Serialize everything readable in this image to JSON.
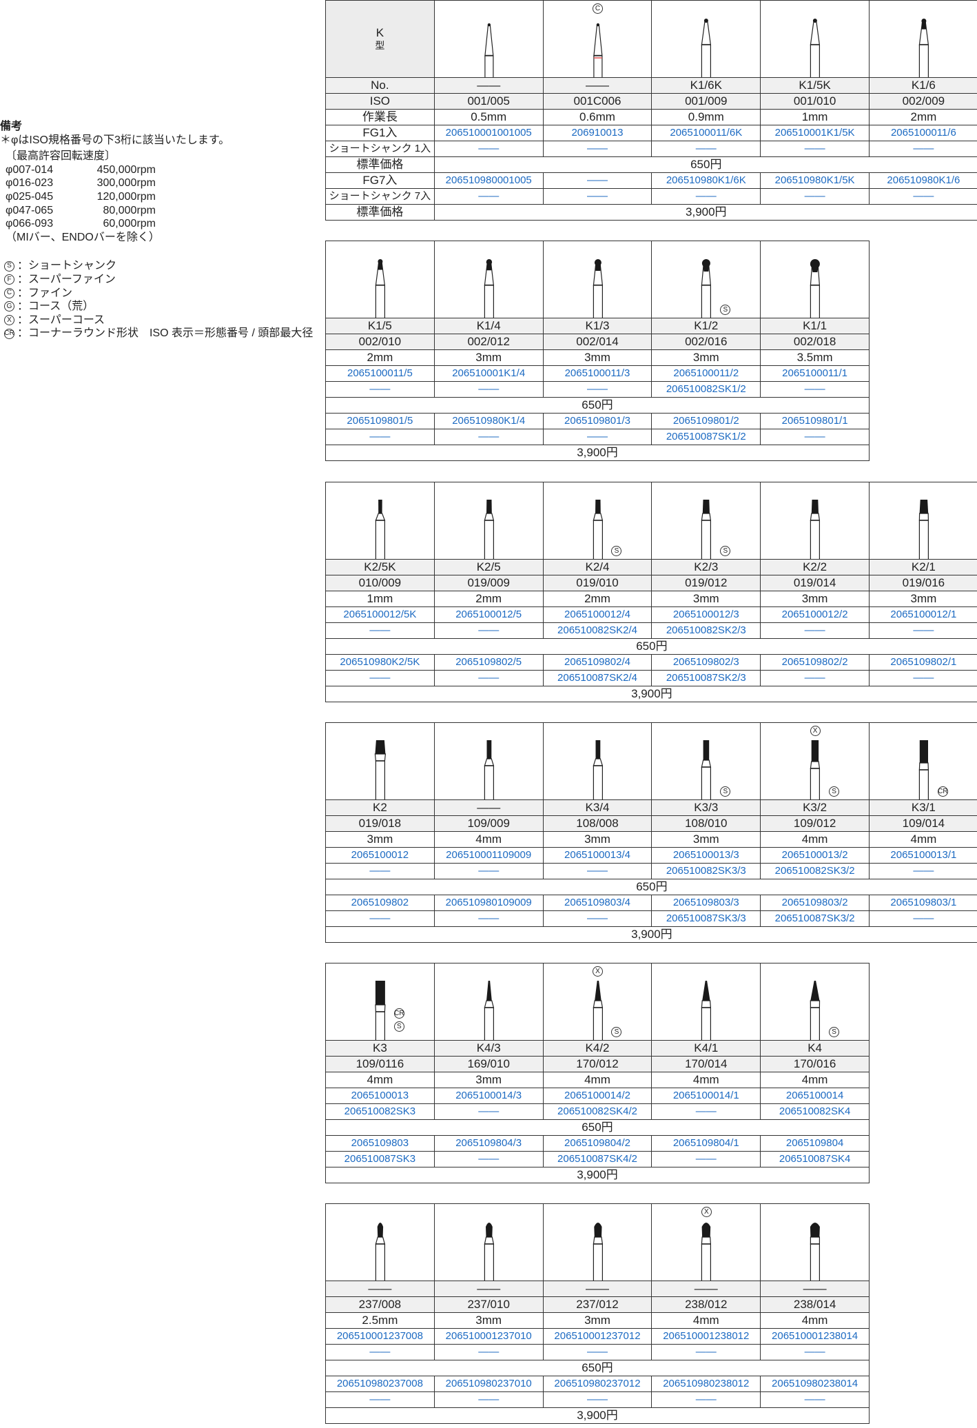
{
  "notes": {
    "heading": "備考",
    "asterisk": "＊φはISO規格番号の下3桁に該当いたします。",
    "speed_title": "〔最高許容回転速度〕",
    "speeds": [
      {
        "range": "φ007-014",
        "rpm": "450,000rpm"
      },
      {
        "range": "φ016-023",
        "rpm": "300,000rpm"
      },
      {
        "range": "φ025-045",
        "rpm": "120,000rpm"
      },
      {
        "range": "φ047-065",
        "rpm": "80,000rpm"
      },
      {
        "range": "φ066-093",
        "rpm": "60,000rpm"
      }
    ],
    "exclusion": "（MIバー、ENDOバーを除く）",
    "symbols": [
      {
        "mark": "S",
        "text": "：ショートシャンク"
      },
      {
        "mark": "F",
        "text": "：スーパーファイン"
      },
      {
        "mark": "C",
        "text": "：ファイン"
      },
      {
        "mark": "G",
        "text": "：コース（荒）"
      },
      {
        "mark": "X",
        "text": "：スーパーコース"
      },
      {
        "mark": "CR",
        "text": "：コーナーラウンド形状　ISO 表示＝形態番号 / 頭部最大径"
      }
    ]
  },
  "labels": {
    "type_k": "K",
    "type_kata": "型",
    "no": "No.",
    "iso": "ISO",
    "length": "作業長",
    "fg1": "FG1入",
    "short1": "ショートシャンク 1入",
    "price1": "標準価格",
    "fg7": "FG7入",
    "short7": "ショートシャンク 7入",
    "price7": "標準価格"
  },
  "colors": {
    "code": "#1c6ac2",
    "header_bg": "#f0f0f0",
    "red_band": "#e05050"
  },
  "tables": [
    {
      "price1": "650円",
      "price7": "3,900円",
      "items": [
        {
          "no": "——",
          "iso": "001/005",
          "length": "0.5mm",
          "fg1": "206510001001005",
          "short1": "——",
          "fg7": "206510980001005",
          "short7": "——",
          "shape": "fine-taper"
        },
        {
          "no": "——",
          "iso": "001C006",
          "length": "0.6mm",
          "fg1": "206910013",
          "short1": "——",
          "fg7": "——",
          "short7": "——",
          "shape": "fine-taper-red",
          "mark_top": "C"
        },
        {
          "no": "K1/6K",
          "iso": "001/009",
          "length": "0.9mm",
          "fg1": "2065100011/6K",
          "short1": "——",
          "fg7": "206510980K1/6K",
          "short7": "——",
          "shape": "ball-xs"
        },
        {
          "no": "K1/5K",
          "iso": "001/010",
          "length": "1mm",
          "fg1": "206510001K1/5K",
          "short1": "——",
          "fg7": "206510980K1/5K",
          "short7": "——",
          "shape": "ball-xs"
        },
        {
          "no": "K1/6",
          "iso": "002/009",
          "length": "2mm",
          "fg1": "2065100011/6",
          "short1": "——",
          "fg7": "206510980K1/6",
          "short7": "——",
          "shape": "ball-neck"
        }
      ]
    },
    {
      "price1": "650円",
      "price7": "3,900円",
      "items": [
        {
          "no": "K1/5",
          "iso": "002/010",
          "length": "2mm",
          "fg1": "2065100011/5",
          "short1": "——",
          "fg7": "2065109801/5",
          "short7": "——",
          "shape": "ball-1"
        },
        {
          "no": "K1/4",
          "iso": "002/012",
          "length": "3mm",
          "fg1": "206510001K1/4",
          "short1": "——",
          "fg7": "206510980K1/4",
          "short7": "——",
          "shape": "ball-2"
        },
        {
          "no": "K1/3",
          "iso": "002/014",
          "length": "3mm",
          "fg1": "2065100011/3",
          "short1": "——",
          "fg7": "2065109801/3",
          "short7": "——",
          "shape": "ball-3"
        },
        {
          "no": "K1/2",
          "iso": "002/016",
          "length": "3mm",
          "fg1": "2065100011/2",
          "short1": "206510082SK1/2",
          "fg7": "2065109801/2",
          "short7": "206510087SK1/2",
          "shape": "ball-4",
          "mark_side": [
            "S"
          ]
        },
        {
          "no": "K1/1",
          "iso": "002/018",
          "length": "3.5mm",
          "fg1": "2065100011/1",
          "short1": "——",
          "fg7": "2065109801/1",
          "short7": "——",
          "shape": "ball-5"
        }
      ]
    },
    {
      "price1": "650円",
      "price7": "3,900円",
      "items": [
        {
          "no": "K2/5K",
          "iso": "010/009",
          "length": "1mm",
          "fg1": "2065100012/5K",
          "short1": "——",
          "fg7": "206510980K2/5K",
          "short7": "——",
          "shape": "taper-1"
        },
        {
          "no": "K2/5",
          "iso": "019/009",
          "length": "2mm",
          "fg1": "2065100012/5",
          "short1": "——",
          "fg7": "2065109802/5",
          "short7": "——",
          "shape": "taper-2"
        },
        {
          "no": "K2/4",
          "iso": "019/010",
          "length": "2mm",
          "fg1": "2065100012/4",
          "short1": "206510082SK2/4",
          "fg7": "2065109802/4",
          "short7": "206510087SK2/4",
          "shape": "taper-2",
          "mark_side": [
            "S"
          ]
        },
        {
          "no": "K2/3",
          "iso": "019/012",
          "length": "3mm",
          "fg1": "2065100012/3",
          "short1": "206510082SK2/3",
          "fg7": "2065109802/3",
          "short7": "206510087SK2/3",
          "shape": "taper-3",
          "mark_side": [
            "S"
          ]
        },
        {
          "no": "K2/2",
          "iso": "019/014",
          "length": "3mm",
          "fg1": "2065100012/2",
          "short1": "——",
          "fg7": "2065109802/2",
          "short7": "——",
          "shape": "taper-3"
        },
        {
          "no": "K2/1",
          "iso": "019/016",
          "length": "3mm",
          "fg1": "2065100012/1",
          "short1": "——",
          "fg7": "2065109802/1",
          "short7": "——",
          "shape": "taper-4"
        }
      ]
    },
    {
      "price1": "650円",
      "price7": "3,900円",
      "items": [
        {
          "no": "K2",
          "iso": "019/018",
          "length": "3mm",
          "fg1": "2065100012",
          "short1": "——",
          "fg7": "2065109802",
          "short7": "——",
          "shape": "taper-5"
        },
        {
          "no": "——",
          "iso": "109/009",
          "length": "4mm",
          "fg1": "206510001109009",
          "short1": "——",
          "fg7": "206510980109009",
          "short7": "——",
          "shape": "cyl-1"
        },
        {
          "no": "K3/4",
          "iso": "108/008",
          "length": "3mm",
          "fg1": "2065100013/4",
          "short1": "——",
          "fg7": "2065109803/4",
          "short7": "——",
          "shape": "cyl-1"
        },
        {
          "no": "K3/3",
          "iso": "108/010",
          "length": "3mm",
          "fg1": "2065100013/3",
          "short1": "206510082SK3/3",
          "fg7": "2065109803/3",
          "short7": "206510087SK3/3",
          "shape": "cyl-2",
          "mark_side": [
            "S"
          ]
        },
        {
          "no": "K3/2",
          "iso": "109/012",
          "length": "4mm",
          "fg1": "2065100013/2",
          "short1": "206510082SK3/2",
          "fg7": "2065109803/2",
          "short7": "206510087SK3/2",
          "shape": "cyl-3",
          "mark_top": "X",
          "mark_side": [
            "S"
          ]
        },
        {
          "no": "K3/1",
          "iso": "109/014",
          "length": "4mm",
          "fg1": "2065100013/1",
          "short1": "——",
          "fg7": "2065109803/1",
          "short7": "——",
          "shape": "cyl-4",
          "mark_side": [
            "CR"
          ]
        }
      ]
    },
    {
      "price1": "650円",
      "price7": "3,900円",
      "items": [
        {
          "no": "K3",
          "iso": "109/0116",
          "length": "4mm",
          "fg1": "2065100013",
          "short1": "206510082SK3",
          "fg7": "2065109803",
          "short7": "206510087SK3",
          "shape": "cyl-5",
          "mark_side": [
            "CR",
            "S"
          ]
        },
        {
          "no": "K4/3",
          "iso": "169/010",
          "length": "3mm",
          "fg1": "2065100014/3",
          "short1": "——",
          "fg7": "2065109804/3",
          "short7": "——",
          "shape": "cone-1"
        },
        {
          "no": "K4/2",
          "iso": "170/012",
          "length": "4mm",
          "fg1": "2065100014/2",
          "short1": "206510082SK4/2",
          "fg7": "2065109804/2",
          "short7": "206510087SK4/2",
          "shape": "cone-2",
          "mark_top": "X",
          "mark_side": [
            "S"
          ]
        },
        {
          "no": "K4/1",
          "iso": "170/014",
          "length": "4mm",
          "fg1": "2065100014/1",
          "short1": "——",
          "fg7": "2065109804/1",
          "short7": "——",
          "shape": "cone-3"
        },
        {
          "no": "K4",
          "iso": "170/016",
          "length": "4mm",
          "fg1": "2065100014",
          "short1": "206510082SK4",
          "fg7": "2065109804",
          "short7": "206510087SK4",
          "shape": "cone-4",
          "mark_side": [
            "S"
          ]
        }
      ]
    },
    {
      "price1": "650円",
      "price7": "3,900円",
      "items": [
        {
          "no": "——",
          "iso": "237/008",
          "length": "2.5mm",
          "fg1": "206510001237008",
          "short1": "——",
          "fg7": "206510980237008",
          "short7": "——",
          "shape": "pear-1"
        },
        {
          "no": "——",
          "iso": "237/010",
          "length": "3mm",
          "fg1": "206510001237010",
          "short1": "——",
          "fg7": "206510980237010",
          "short7": "——",
          "shape": "pear-2"
        },
        {
          "no": "——",
          "iso": "237/012",
          "length": "3mm",
          "fg1": "206510001237012",
          "short1": "——",
          "fg7": "206510980237012",
          "short7": "——",
          "shape": "pear-3"
        },
        {
          "no": "——",
          "iso": "238/012",
          "length": "4mm",
          "fg1": "206510001238012",
          "short1": "——",
          "fg7": "206510980238012",
          "short7": "——",
          "shape": "pear-4",
          "mark_top": "X"
        },
        {
          "no": "——",
          "iso": "238/014",
          "length": "4mm",
          "fg1": "206510001238014",
          "short1": "——",
          "fg7": "206510980238014",
          "short7": "——",
          "shape": "pear-5"
        }
      ]
    }
  ]
}
